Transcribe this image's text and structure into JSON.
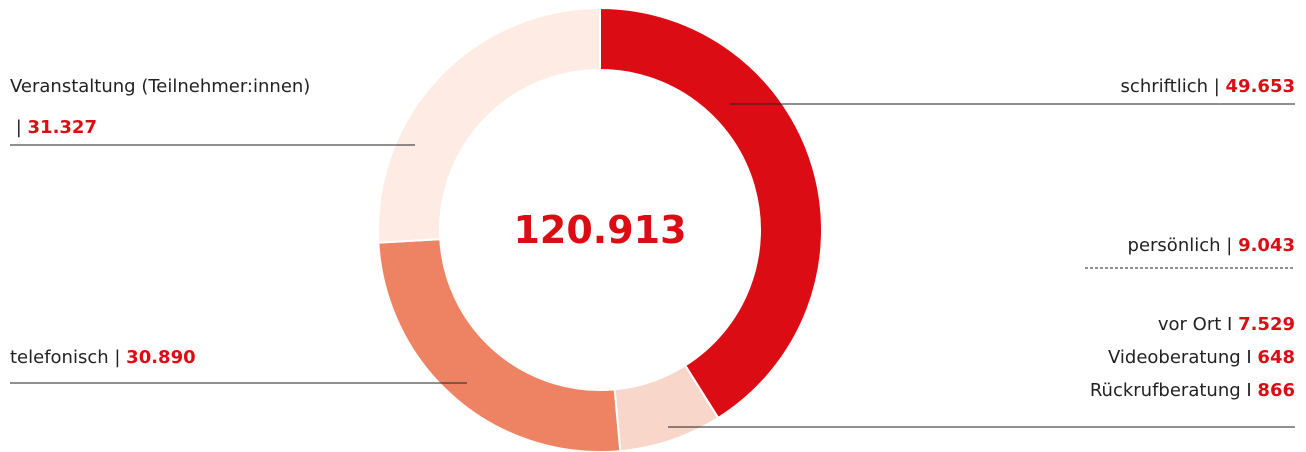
{
  "chart_data": {
    "type": "donut",
    "categories": [
      "schriftlich",
      "persönlich",
      "telefonisch",
      "Veranstaltung (Teilnehmer:innen)"
    ],
    "separators": [
      " | ",
      " | ",
      " | ",
      " | "
    ],
    "values": [
      49653,
      9043,
      30890,
      31327
    ],
    "value_labels": [
      "49.653",
      "9.043",
      "30.890",
      "31.327"
    ],
    "colors": [
      "#dc0c15",
      "#f8d6ca",
      "#ee8363",
      "#fdebe4"
    ],
    "total": 120913,
    "total_label": "120.913",
    "breakdown": {
      "categories": [
        "vor Ort",
        "Videoberatung",
        "Rückrufberatung"
      ],
      "separators": [
        " I ",
        " I ",
        " I "
      ],
      "values": [
        7529,
        648,
        866
      ],
      "value_labels": [
        "7.529",
        "648",
        "866"
      ]
    }
  }
}
